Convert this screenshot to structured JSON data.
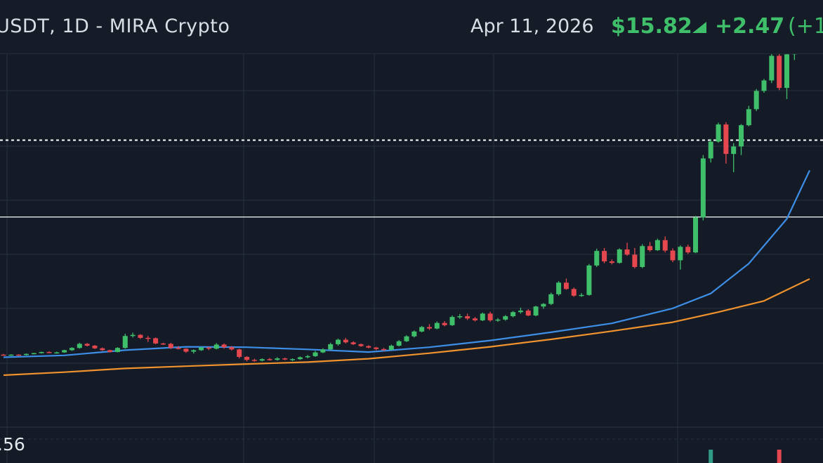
{
  "header": {
    "symbol": "USDT, 1D - MIRA Crypto",
    "date": "Apr 11, 2026",
    "price": "$15.82",
    "change": "+2.47",
    "change_pct": "(+1"
  },
  "axis": {
    "left_label": ".56"
  },
  "colors": {
    "background": "#141b27",
    "grid": "#273040",
    "up": "#3fbf6a",
    "down": "#e5474f",
    "ma_fast": "#3d8ee6",
    "ma_slow": "#f0922e",
    "level": "#ffffff"
  },
  "chart_data": {
    "type": "candlestick",
    "interval": "1D",
    "x_axis": "candle index (dates not printed)",
    "ylim": [
      0,
      100
    ],
    "y_units": "relative price level (no price ticks visible)",
    "candles": [
      [
        13.6,
        13.8,
        13.4,
        13.5
      ],
      [
        13.5,
        13.7,
        13.3,
        13.6
      ],
      [
        13.6,
        13.7,
        13.4,
        13.5
      ],
      [
        13.5,
        13.9,
        13.4,
        13.8
      ],
      [
        13.8,
        14.1,
        13.7,
        14.0
      ],
      [
        14.0,
        14.4,
        13.9,
        14.3
      ],
      [
        14.3,
        14.5,
        14.0,
        14.1
      ],
      [
        14.1,
        14.4,
        13.9,
        14.2
      ],
      [
        14.2,
        14.9,
        14.1,
        14.8
      ],
      [
        14.8,
        15.6,
        14.6,
        15.4
      ],
      [
        15.4,
        16.8,
        15.2,
        16.5
      ],
      [
        16.5,
        16.7,
        15.8,
        16.0
      ],
      [
        16.0,
        16.2,
        15.1,
        15.3
      ],
      [
        15.3,
        15.5,
        14.6,
        14.8
      ],
      [
        14.8,
        14.9,
        14.2,
        14.3
      ],
      [
        14.3,
        15.6,
        14.2,
        15.4
      ],
      [
        15.4,
        19.2,
        15.2,
        18.6
      ],
      [
        18.6,
        19.5,
        18.2,
        18.9
      ],
      [
        18.9,
        19.1,
        17.8,
        18.1
      ],
      [
        18.1,
        18.6,
        17.0,
        18.0
      ],
      [
        18.0,
        18.2,
        16.4,
        16.6
      ],
      [
        16.6,
        16.8,
        16.2,
        16.5
      ],
      [
        16.5,
        16.8,
        15.1,
        15.4
      ],
      [
        15.4,
        15.9,
        15.0,
        15.2
      ],
      [
        15.2,
        15.3,
        14.1,
        14.4
      ],
      [
        14.4,
        15.0,
        13.9,
        14.8
      ],
      [
        14.8,
        15.7,
        14.6,
        15.5
      ],
      [
        15.5,
        15.7,
        14.8,
        15.2
      ],
      [
        15.2,
        16.7,
        15.0,
        16.3
      ],
      [
        16.3,
        16.6,
        15.2,
        15.6
      ],
      [
        15.6,
        15.9,
        14.7,
        15.0
      ],
      [
        15.0,
        15.2,
        12.6,
        13.0
      ],
      [
        13.0,
        13.2,
        11.8,
        12.2
      ],
      [
        12.2,
        12.5,
        11.7,
        12.0
      ],
      [
        12.0,
        12.6,
        11.8,
        12.4
      ],
      [
        12.4,
        12.7,
        12.0,
        12.2
      ],
      [
        12.2,
        12.9,
        12.0,
        12.6
      ],
      [
        12.6,
        12.8,
        12.1,
        12.3
      ],
      [
        12.3,
        12.6,
        11.9,
        12.4
      ],
      [
        12.4,
        13.1,
        12.2,
        12.9
      ],
      [
        12.9,
        13.5,
        12.6,
        13.2
      ],
      [
        13.2,
        14.6,
        13.0,
        14.2
      ],
      [
        14.2,
        15.3,
        14.0,
        15.0
      ],
      [
        15.0,
        16.8,
        14.8,
        16.4
      ],
      [
        16.4,
        17.9,
        16.0,
        17.6
      ],
      [
        17.6,
        18.1,
        16.6,
        16.9
      ],
      [
        16.9,
        17.2,
        16.2,
        16.4
      ],
      [
        16.4,
        16.6,
        15.7,
        15.9
      ],
      [
        15.9,
        16.1,
        15.3,
        15.5
      ],
      [
        15.5,
        15.7,
        14.8,
        15.1
      ],
      [
        15.1,
        15.4,
        14.6,
        14.9
      ],
      [
        14.9,
        16.3,
        14.7,
        16.0
      ],
      [
        16.0,
        17.5,
        15.8,
        17.2
      ],
      [
        17.2,
        18.8,
        17.0,
        18.5
      ],
      [
        18.5,
        20.1,
        18.2,
        19.8
      ],
      [
        19.8,
        21.3,
        19.6,
        21.0
      ],
      [
        21.0,
        21.8,
        20.2,
        20.6
      ],
      [
        20.6,
        22.5,
        20.4,
        22.1
      ],
      [
        22.1,
        22.6,
        21.2,
        21.5
      ],
      [
        21.5,
        24.1,
        21.3,
        23.7
      ],
      [
        23.7,
        24.5,
        23.2,
        23.9
      ],
      [
        23.9,
        24.6,
        22.9,
        23.3
      ],
      [
        23.3,
        23.7,
        22.5,
        22.8
      ],
      [
        22.8,
        24.9,
        22.6,
        24.6
      ],
      [
        24.6,
        25.1,
        22.4,
        22.8
      ],
      [
        22.8,
        23.4,
        22.4,
        23.0
      ],
      [
        23.0,
        24.2,
        22.7,
        23.9
      ],
      [
        23.9,
        25.3,
        23.6,
        25.0
      ],
      [
        25.0,
        26.2,
        24.6,
        25.4
      ],
      [
        25.4,
        25.8,
        23.9,
        24.1
      ],
      [
        24.1,
        26.7,
        23.9,
        26.5
      ],
      [
        26.5,
        27.4,
        25.9,
        27.2
      ],
      [
        27.2,
        30.2,
        26.9,
        29.8
      ],
      [
        29.8,
        33.3,
        29.4,
        32.9
      ],
      [
        32.9,
        34.0,
        31.0,
        31.2
      ],
      [
        31.2,
        31.6,
        29.1,
        29.4
      ],
      [
        29.4,
        30.1,
        29.1,
        29.6
      ],
      [
        29.6,
        37.9,
        29.4,
        37.5
      ],
      [
        37.5,
        42.0,
        37.1,
        41.4
      ],
      [
        41.4,
        42.2,
        38.1,
        38.6
      ],
      [
        38.6,
        39.1,
        37.8,
        38.2
      ],
      [
        38.2,
        42.1,
        38.0,
        41.8
      ],
      [
        41.8,
        43.6,
        40.1,
        40.4
      ],
      [
        40.4,
        42.2,
        36.7,
        37.1
      ],
      [
        37.1,
        43.2,
        36.8,
        42.7
      ],
      [
        42.7,
        43.8,
        41.2,
        41.6
      ],
      [
        41.6,
        44.7,
        41.4,
        44.3
      ],
      [
        44.3,
        45.3,
        41.0,
        41.5
      ],
      [
        41.5,
        42.1,
        38.4,
        38.9
      ],
      [
        38.9,
        42.9,
        36.4,
        42.5
      ],
      [
        42.5,
        43.1,
        40.6,
        41.0
      ],
      [
        41.0,
        50.8,
        40.8,
        50.4
      ],
      [
        50.4,
        67.1,
        49.6,
        66.2
      ],
      [
        66.2,
        71.4,
        65.1,
        70.7
      ],
      [
        70.7,
        75.8,
        70.4,
        75.3
      ],
      [
        75.3,
        75.9,
        64.8,
        67.4
      ],
      [
        67.4,
        70.3,
        62.5,
        69.4
      ],
      [
        69.4,
        75.4,
        67.1,
        75.1
      ],
      [
        75.1,
        80.3,
        74.8,
        79.4
      ],
      [
        79.4,
        84.8,
        78.9,
        84.3
      ],
      [
        84.3,
        87.5,
        83.8,
        87.1
      ],
      [
        87.1,
        94.3,
        86.4,
        93.7
      ],
      [
        93.7,
        94.4,
        84.5,
        85.1
      ],
      [
        85.1,
        94.8,
        82.1,
        94.1
      ],
      [
        94.1,
        100.0,
        92.6,
        99.6
      ],
      [
        99.6,
        105.0,
        99.1,
        104.3
      ]
    ],
    "ma_fast": [
      [
        0,
        12.9
      ],
      [
        8,
        13.4
      ],
      [
        16,
        14.8
      ],
      [
        24,
        15.7
      ],
      [
        32,
        15.6
      ],
      [
        40,
        15.0
      ],
      [
        48,
        14.3
      ],
      [
        56,
        15.6
      ],
      [
        64,
        17.4
      ],
      [
        72,
        19.6
      ],
      [
        80,
        22.0
      ],
      [
        88,
        26.0
      ],
      [
        93,
        30.0
      ],
      [
        98,
        38.0
      ],
      [
        103,
        50.0
      ],
      [
        106,
        63.0
      ]
    ],
    "ma_slow": [
      [
        0,
        8.1
      ],
      [
        8,
        8.9
      ],
      [
        16,
        9.9
      ],
      [
        24,
        10.5
      ],
      [
        32,
        11.1
      ],
      [
        40,
        11.6
      ],
      [
        48,
        12.5
      ],
      [
        56,
        14.0
      ],
      [
        64,
        15.7
      ],
      [
        72,
        17.7
      ],
      [
        80,
        19.9
      ],
      [
        88,
        22.3
      ],
      [
        94,
        25.0
      ],
      [
        100,
        28.0
      ],
      [
        106,
        33.9
      ]
    ],
    "levels": [
      {
        "value": 71.1,
        "style": "dotted"
      },
      {
        "value": 50.5,
        "style": "solid"
      }
    ],
    "volume_bars": [
      {
        "index": 93,
        "color": "up"
      },
      {
        "index": 102,
        "color": "down"
      }
    ],
    "grid": true
  }
}
